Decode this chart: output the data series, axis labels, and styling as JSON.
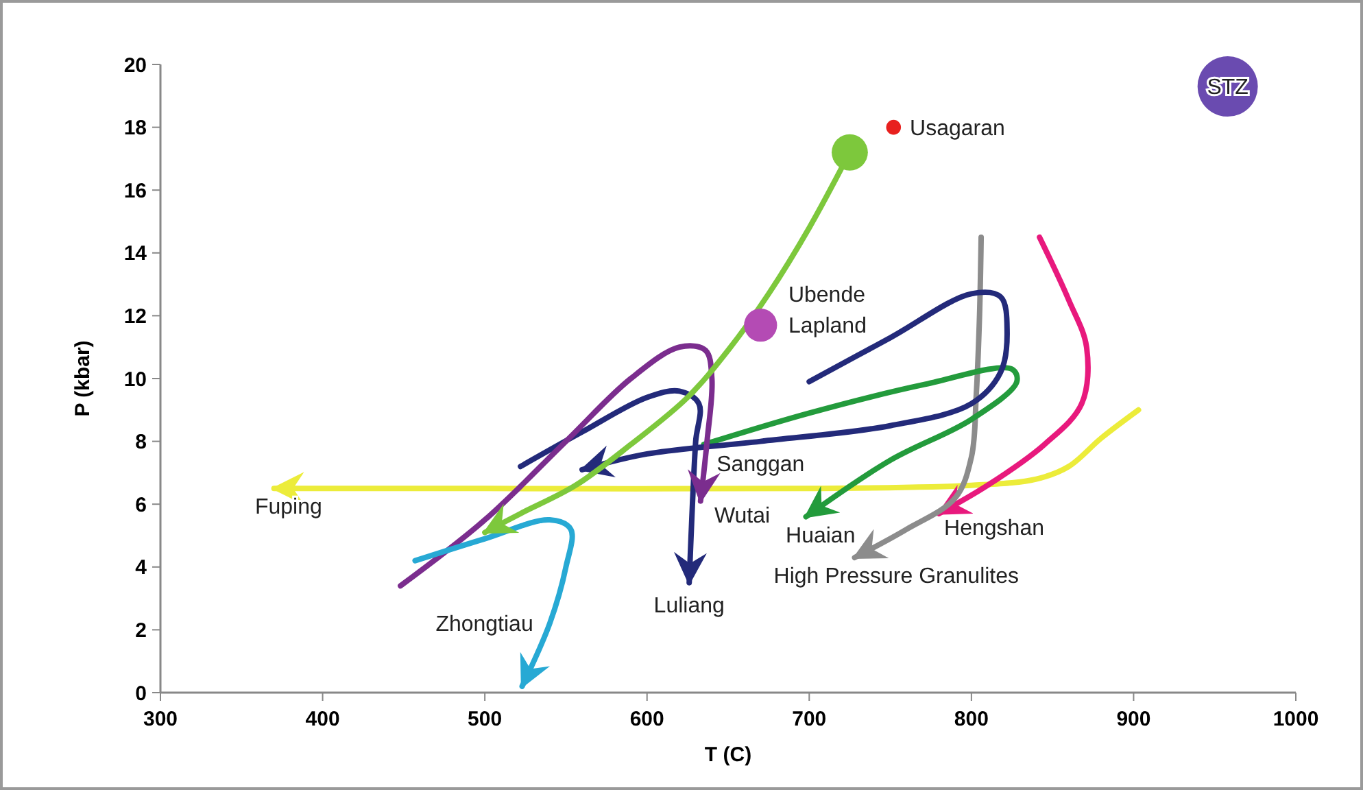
{
  "chart_data": {
    "type": "line",
    "xlabel": "T (C)",
    "ylabel": "P (kbar)",
    "xlim": [
      300,
      1000
    ],
    "ylim": [
      0,
      20
    ],
    "xticks": [
      300,
      400,
      500,
      600,
      700,
      800,
      900,
      1000
    ],
    "yticks": [
      0,
      2,
      4,
      6,
      8,
      10,
      12,
      14,
      16,
      18,
      20
    ],
    "grid": false,
    "line_style": "solid",
    "series": [
      {
        "name": "Fuping",
        "color": "#ecec3a",
        "x": [
          903,
          880,
          860,
          840,
          800,
          700,
          500,
          370
        ],
        "values": [
          9.0,
          8.1,
          7.2,
          6.8,
          6.6,
          6.5,
          6.5,
          6.5
        ]
      },
      {
        "name": "Hengshan",
        "color": "#e8197d",
        "x": [
          842,
          860,
          871,
          868,
          845,
          810,
          780
        ],
        "values": [
          14.5,
          12.5,
          11,
          9.2,
          7.9,
          6.6,
          5.7
        ]
      },
      {
        "name": "High Pressure Granulites",
        "color": "#8c8c8c",
        "x": [
          806,
          805,
          803,
          800,
          790,
          760,
          728
        ],
        "values": [
          14.5,
          12,
          9.5,
          7.5,
          6.2,
          5.2,
          4.3
        ]
      },
      {
        "name": "Huaian",
        "color": "#239b3c",
        "x": [
          635,
          700,
          770,
          825,
          828,
          800,
          750,
          698
        ],
        "values": [
          7.9,
          8.9,
          9.8,
          10.3,
          9.9,
          8.7,
          7.4,
          5.6
        ]
      },
      {
        "name": "Sanggan",
        "color": "#232a7a",
        "x": [
          700,
          750,
          800,
          818,
          822,
          818,
          800,
          750,
          670,
          600,
          560
        ],
        "values": [
          9.9,
          11.3,
          12.7,
          12.6,
          11.5,
          10.2,
          9.2,
          8.5,
          8.0,
          7.6,
          7.1
        ]
      },
      {
        "name": "Luliang",
        "color": "#232a7a",
        "x": [
          522,
          560,
          600,
          620,
          632,
          630,
          628,
          626
        ],
        "values": [
          7.2,
          8.3,
          9.4,
          9.6,
          9.2,
          8,
          6,
          3.5
        ]
      },
      {
        "name": "Wutai",
        "color": "#7b2d8e",
        "x": [
          448,
          500,
          550,
          590,
          620,
          636,
          640,
          637,
          633
        ],
        "values": [
          3.4,
          5.5,
          8,
          10,
          11,
          10.9,
          10,
          8,
          6.1
        ]
      },
      {
        "name": "Zhongtiau",
        "color": "#27a9d4",
        "x": [
          457,
          500,
          540,
          553,
          550,
          540,
          523
        ],
        "values": [
          4.2,
          4.9,
          5.5,
          5.2,
          4.0,
          2.2,
          0.2
        ]
      },
      {
        "name": "Ubende",
        "color": "#7dc83c",
        "x": [
          725,
          700,
          675,
          650,
          625,
          590,
          556,
          522,
          500
        ],
        "values": [
          17.2,
          14.8,
          12.7,
          10.9,
          9.4,
          7.9,
          6.6,
          5.7,
          5.1
        ]
      },
      {
        "type": "bubble",
        "color": "#7dc83c",
        "x": [
          725
        ],
        "values": [
          17.2
        ],
        "sizes": [
          0.36
        ]
      },
      {
        "type": "bubble",
        "name": "Usagaran",
        "color": "#e8201e",
        "x": [
          752
        ],
        "values": [
          18.0
        ],
        "sizes": [
          0.06
        ]
      },
      {
        "type": "bubble",
        "name": "Lapland",
        "color": "#b44bb4",
        "x": [
          670
        ],
        "values": [
          11.7
        ],
        "sizes": [
          0.3
        ]
      },
      {
        "type": "bubble",
        "name": "STZ",
        "color": "#6a4bb0",
        "x": [
          958
        ],
        "values": [
          19.3
        ],
        "sizes": [
          1
        ]
      }
    ]
  }
}
